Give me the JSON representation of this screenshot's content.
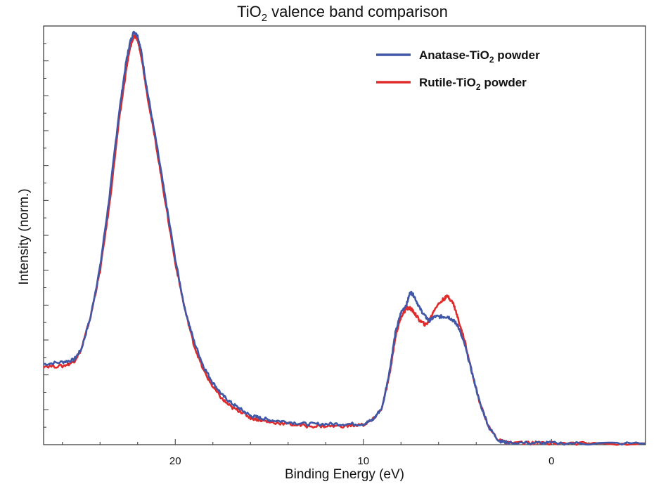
{
  "chart_data": {
    "type": "line",
    "title": {
      "main": "TiO",
      "sub": "2",
      "rest": " valence band comparison"
    },
    "xlabel": "Binding Energy (eV)",
    "ylabel": "Intensity (norm.)",
    "x_reversed": true,
    "xlim": [
      -5,
      27
    ],
    "ylim": [
      0,
      1
    ],
    "x_ticks": [
      20,
      10,
      0
    ],
    "y_ticks_labeled": false,
    "legend_position": "top-right",
    "series": [
      {
        "legend": {
          "pre": "Anatase-TiO",
          "sub": "2",
          "post": " powder"
        },
        "color": "#3f57a6",
        "points": [
          [
            27,
            0.195
          ],
          [
            26,
            0.2
          ],
          [
            25.4,
            0.205
          ],
          [
            25,
            0.23
          ],
          [
            24.5,
            0.31
          ],
          [
            24,
            0.43
          ],
          [
            23.5,
            0.6
          ],
          [
            23,
            0.8
          ],
          [
            22.6,
            0.93
          ],
          [
            22.4,
            0.975
          ],
          [
            22.2,
            1.0
          ],
          [
            22.0,
            0.99
          ],
          [
            21.8,
            0.95
          ],
          [
            21.5,
            0.86
          ],
          [
            21,
            0.73
          ],
          [
            20.5,
            0.59
          ],
          [
            20,
            0.45
          ],
          [
            19.5,
            0.33
          ],
          [
            19,
            0.25
          ],
          [
            18.5,
            0.19
          ],
          [
            18,
            0.15
          ],
          [
            17.5,
            0.12
          ],
          [
            17,
            0.1
          ],
          [
            16.5,
            0.085
          ],
          [
            16,
            0.07
          ],
          [
            15.5,
            0.065
          ],
          [
            15,
            0.06
          ],
          [
            14,
            0.055
          ],
          [
            13,
            0.05
          ],
          [
            12,
            0.05
          ],
          [
            11,
            0.05
          ],
          [
            10,
            0.05
          ],
          [
            9.5,
            0.06
          ],
          [
            9,
            0.09
          ],
          [
            8.6,
            0.18
          ],
          [
            8.3,
            0.27
          ],
          [
            8,
            0.32
          ],
          [
            7.7,
            0.34
          ],
          [
            7.5,
            0.37
          ],
          [
            7.3,
            0.36
          ],
          [
            7,
            0.33
          ],
          [
            6.7,
            0.31
          ],
          [
            6.5,
            0.3
          ],
          [
            6.2,
            0.31
          ],
          [
            5.8,
            0.31
          ],
          [
            5.5,
            0.31
          ],
          [
            5.2,
            0.3
          ],
          [
            5,
            0.29
          ],
          [
            4.6,
            0.24
          ],
          [
            4.2,
            0.17
          ],
          [
            3.8,
            0.1
          ],
          [
            3.3,
            0.04
          ],
          [
            2.8,
            0.01
          ],
          [
            2.4,
            0.005
          ],
          [
            1,
            0.004
          ],
          [
            0,
            0.004
          ],
          [
            -2,
            0.003
          ],
          [
            -5,
            0.003
          ]
        ]
      },
      {
        "legend": {
          "pre": "Rutile-TiO",
          "sub": "2",
          "post": " powder"
        },
        "color": "#e02b2b",
        "points": [
          [
            27,
            0.19
          ],
          [
            26,
            0.19
          ],
          [
            25.4,
            0.2
          ],
          [
            25,
            0.23
          ],
          [
            24.5,
            0.31
          ],
          [
            24,
            0.42
          ],
          [
            23.5,
            0.58
          ],
          [
            23,
            0.78
          ],
          [
            22.6,
            0.91
          ],
          [
            22.4,
            0.96
          ],
          [
            22.2,
            0.99
          ],
          [
            22.0,
            0.98
          ],
          [
            21.8,
            0.94
          ],
          [
            21.5,
            0.85
          ],
          [
            21,
            0.72
          ],
          [
            20.5,
            0.58
          ],
          [
            20,
            0.44
          ],
          [
            19.5,
            0.33
          ],
          [
            19,
            0.24
          ],
          [
            18.5,
            0.18
          ],
          [
            18,
            0.14
          ],
          [
            17.5,
            0.11
          ],
          [
            17,
            0.09
          ],
          [
            16.5,
            0.08
          ],
          [
            16,
            0.065
          ],
          [
            15.5,
            0.06
          ],
          [
            15,
            0.055
          ],
          [
            14,
            0.05
          ],
          [
            13,
            0.045
          ],
          [
            12,
            0.045
          ],
          [
            11,
            0.045
          ],
          [
            10,
            0.048
          ],
          [
            9.5,
            0.06
          ],
          [
            9,
            0.09
          ],
          [
            8.6,
            0.17
          ],
          [
            8.3,
            0.26
          ],
          [
            8,
            0.31
          ],
          [
            7.7,
            0.33
          ],
          [
            7.5,
            0.33
          ],
          [
            7.3,
            0.32
          ],
          [
            7,
            0.3
          ],
          [
            6.7,
            0.29
          ],
          [
            6.5,
            0.3
          ],
          [
            6.2,
            0.33
          ],
          [
            5.8,
            0.35
          ],
          [
            5.5,
            0.36
          ],
          [
            5.2,
            0.34
          ],
          [
            5,
            0.31
          ],
          [
            4.6,
            0.25
          ],
          [
            4.2,
            0.17
          ],
          [
            3.8,
            0.1
          ],
          [
            3.3,
            0.04
          ],
          [
            2.8,
            0.01
          ],
          [
            2.4,
            0.005
          ],
          [
            1,
            0.004
          ],
          [
            0,
            0.004
          ],
          [
            -2,
            0.003
          ],
          [
            -5,
            0.003
          ]
        ]
      }
    ]
  }
}
